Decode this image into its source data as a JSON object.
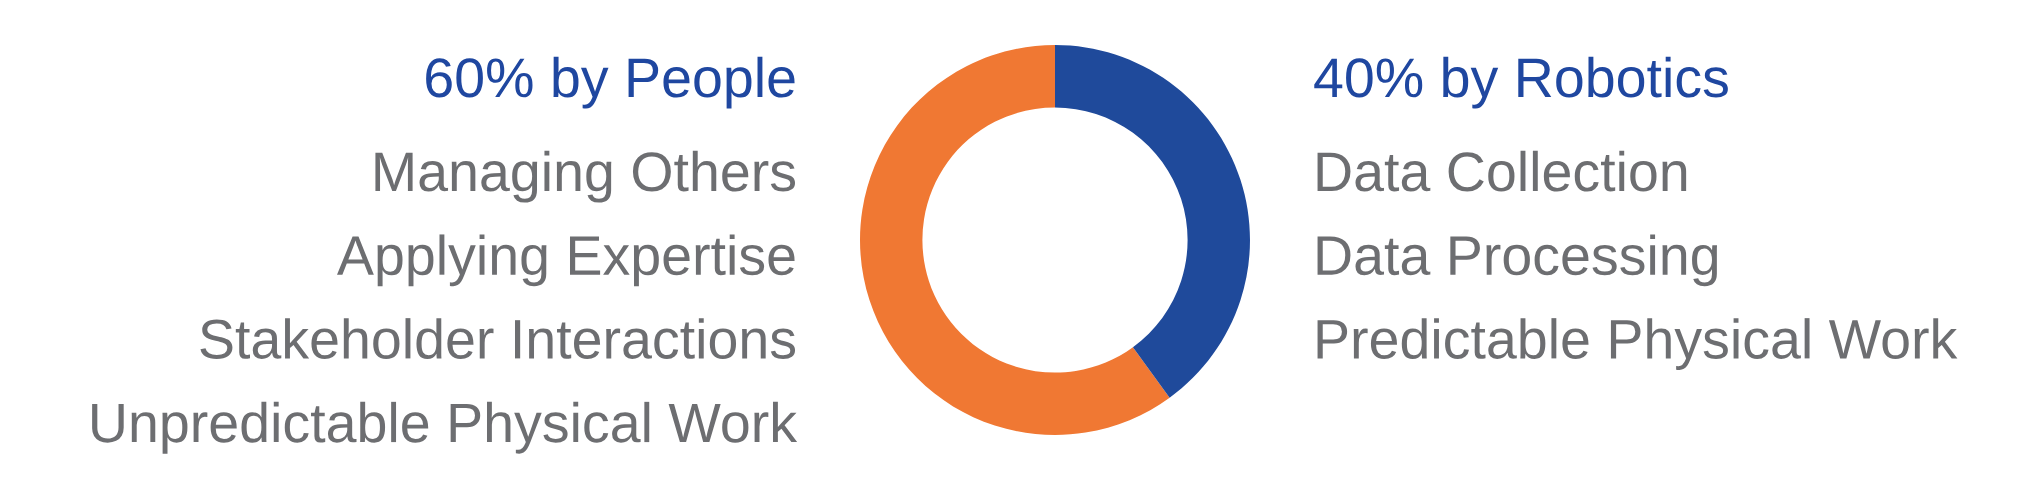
{
  "chart_data": {
    "type": "donut",
    "categories": [
      "60% by People",
      "40% by Robotics"
    ],
    "values": [
      60,
      40
    ],
    "colors": [
      "#f07833",
      "#1f4a9b"
    ],
    "annotations": [
      "Managing Others\nApplying Expertise\nStakeholder Interactions\nUnpredictable Physical Work",
      "Data Collection\nData Processing\nPredictable Physical Work"
    ]
  }
}
